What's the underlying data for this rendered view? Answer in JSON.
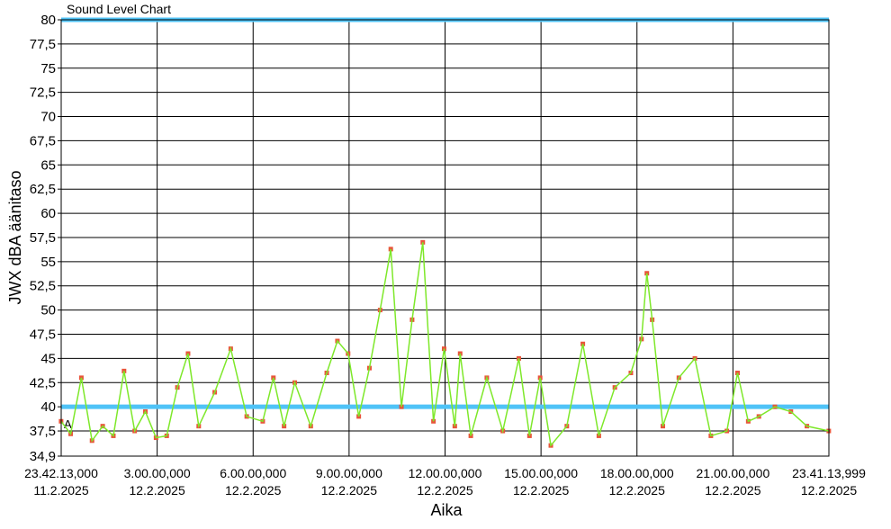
{
  "chart_data": {
    "type": "line",
    "title": "Sound Level Chart",
    "xlabel": "Aika",
    "ylabel": "JWX dBA äänitaso",
    "ylim": [
      34.9,
      80
    ],
    "xlim": [
      "2025-02-11T23:42:13.000",
      "2025-02-12T23:41:13.999"
    ],
    "grid": true,
    "y_ticks": [
      "80",
      "77,5",
      "75",
      "72,5",
      "70",
      "67,5",
      "65",
      "62,5",
      "60",
      "57,5",
      "55",
      "52,5",
      "50",
      "47,5",
      "45",
      "42,5",
      "40",
      "37,5",
      "34,9"
    ],
    "x_ticks": [
      {
        "time": "23.42.13,000",
        "date": "11.2.2025"
      },
      {
        "time": "3.00.00,000",
        "date": "12.2.2025"
      },
      {
        "time": "6.00.00,000",
        "date": "12.2.2025"
      },
      {
        "time": "9.00.00,000",
        "date": "12.2.2025"
      },
      {
        "time": "12.00.00,000",
        "date": "12.2.2025"
      },
      {
        "time": "15.00.00,000",
        "date": "12.2.2025"
      },
      {
        "time": "18.00.00,000",
        "date": "12.2.2025"
      },
      {
        "time": "21.00.00,000",
        "date": "12.2.2025"
      },
      {
        "time": "23.41.13,999",
        "date": "12.2.2025"
      }
    ],
    "reference_lines": [
      {
        "value": 40,
        "color": "#4fc3f7"
      },
      {
        "value": 80,
        "color": "#4fc3f7"
      },
      {
        "value": 37.5,
        "color": "#000000",
        "label": "A"
      }
    ],
    "series": [
      {
        "color": "#7ee82a",
        "marker_color": "#e8553a",
        "points": [
          [
            "2025-02-11T23:42",
            38.5
          ],
          [
            "2025-02-12T00:00",
            37.2
          ],
          [
            "2025-02-12T00:20",
            43.0
          ],
          [
            "2025-02-12T00:40",
            36.5
          ],
          [
            "2025-02-12T01:00",
            38.0
          ],
          [
            "2025-02-12T01:20",
            37.0
          ],
          [
            "2025-02-12T01:40",
            43.7
          ],
          [
            "2025-02-12T02:00",
            37.5
          ],
          [
            "2025-02-12T02:20",
            39.5
          ],
          [
            "2025-02-12T02:40",
            36.8
          ],
          [
            "2025-02-12T03:00",
            37.0
          ],
          [
            "2025-02-12T03:20",
            42.0
          ],
          [
            "2025-02-12T03:40",
            45.5
          ],
          [
            "2025-02-12T04:00",
            38.0
          ],
          [
            "2025-02-12T04:30",
            41.5
          ],
          [
            "2025-02-12T05:00",
            46.0
          ],
          [
            "2025-02-12T05:30",
            39.0
          ],
          [
            "2025-02-12T06:00",
            38.5
          ],
          [
            "2025-02-12T06:20",
            43.0
          ],
          [
            "2025-02-12T06:40",
            38.0
          ],
          [
            "2025-02-12T07:00",
            42.5
          ],
          [
            "2025-02-12T07:30",
            38.0
          ],
          [
            "2025-02-12T08:00",
            43.5
          ],
          [
            "2025-02-12T08:20",
            46.8
          ],
          [
            "2025-02-12T08:40",
            45.5
          ],
          [
            "2025-02-12T09:00",
            39.0
          ],
          [
            "2025-02-12T09:20",
            44.0
          ],
          [
            "2025-02-12T09:40",
            50.0
          ],
          [
            "2025-02-12T10:00",
            56.3
          ],
          [
            "2025-02-12T10:20",
            40.0
          ],
          [
            "2025-02-12T10:40",
            49.0
          ],
          [
            "2025-02-12T11:00",
            57.0
          ],
          [
            "2025-02-12T11:20",
            38.5
          ],
          [
            "2025-02-12T11:40",
            46.0
          ],
          [
            "2025-02-12T12:00",
            38.0
          ],
          [
            "2025-02-12T12:10",
            45.5
          ],
          [
            "2025-02-12T12:30",
            37.0
          ],
          [
            "2025-02-12T13:00",
            43.0
          ],
          [
            "2025-02-12T13:30",
            37.5
          ],
          [
            "2025-02-12T14:00",
            45.0
          ],
          [
            "2025-02-12T14:20",
            37.0
          ],
          [
            "2025-02-12T14:40",
            43.0
          ],
          [
            "2025-02-12T15:00",
            36.0
          ],
          [
            "2025-02-12T15:30",
            38.0
          ],
          [
            "2025-02-12T16:00",
            46.5
          ],
          [
            "2025-02-12T16:30",
            37.0
          ],
          [
            "2025-02-12T17:00",
            42.0
          ],
          [
            "2025-02-12T17:30",
            43.5
          ],
          [
            "2025-02-12T17:50",
            47.0
          ],
          [
            "2025-02-12T18:00",
            53.8
          ],
          [
            "2025-02-12T18:10",
            49.0
          ],
          [
            "2025-02-12T18:30",
            38.0
          ],
          [
            "2025-02-12T19:00",
            43.0
          ],
          [
            "2025-02-12T19:30",
            45.0
          ],
          [
            "2025-02-12T20:00",
            37.0
          ],
          [
            "2025-02-12T20:30",
            37.5
          ],
          [
            "2025-02-12T20:50",
            43.5
          ],
          [
            "2025-02-12T21:10",
            38.5
          ],
          [
            "2025-02-12T21:30",
            39.0
          ],
          [
            "2025-02-12T22:00",
            40.0
          ],
          [
            "2025-02-12T22:30",
            39.5
          ],
          [
            "2025-02-12T23:00",
            38.0
          ],
          [
            "2025-02-12T23:41",
            37.5
          ]
        ]
      }
    ]
  }
}
